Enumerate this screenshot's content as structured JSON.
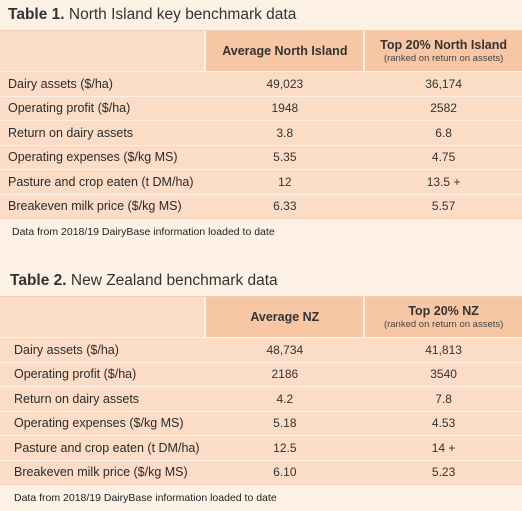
{
  "table1": {
    "caption_num": "Table 1.",
    "caption_text": " North Island key benchmark data",
    "col1": "Average North Island",
    "col2": "Top 20% North Island",
    "col2_sub": "(ranked on return on assets)",
    "rows": [
      {
        "label": "Dairy assets ($/ha)",
        "v1": "49,023",
        "v2": "36,174"
      },
      {
        "label": "Operating profit ($/ha)",
        "v1": "1948",
        "v2": "2582"
      },
      {
        "label": "Return on dairy assets",
        "v1": "3.8",
        "v2": "6.8"
      },
      {
        "label": "Operating expenses ($/kg MS)",
        "v1": "5.35",
        "v2": "4.75"
      },
      {
        "label": "Pasture and crop eaten (t DM/ha)",
        "v1": "12",
        "v2": "13.5 +"
      },
      {
        "label": "Breakeven milk price ($/kg MS)",
        "v1": "6.33",
        "v2": "5.57"
      }
    ],
    "note": "Data from 2018/19 DairyBase information loaded to date"
  },
  "table2": {
    "caption_num": "Table 2.",
    "caption_text": " New Zealand benchmark data",
    "col1": "Average NZ",
    "col2": "Top 20% NZ",
    "col2_sub": "(ranked on return on assets)",
    "rows": [
      {
        "label": "Dairy assets ($/ha)",
        "v1": "48,734",
        "v2": "41,813"
      },
      {
        "label": "Operating profit ($/ha)",
        "v1": "2186",
        "v2": "3540"
      },
      {
        "label": "Return on dairy assets",
        "v1": "4.2",
        "v2": "7.8"
      },
      {
        "label": "Operating expenses ($/kg MS)",
        "v1": "5.18",
        "v2": "4.53"
      },
      {
        "label": "Pasture and crop eaten (t DM/ha)",
        "v1": "12.5",
        "v2": "14 +"
      },
      {
        "label": "Breakeven milk price ($/kg MS)",
        "v1": "6.10",
        "v2": "5.23"
      }
    ],
    "note": "Data from 2018/19 DairyBase information loaded to date"
  }
}
